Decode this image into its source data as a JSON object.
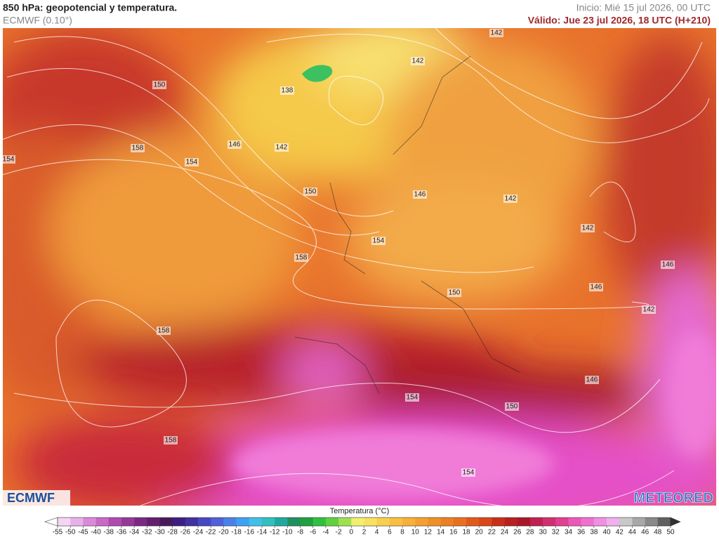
{
  "header": {
    "title": "850 hPa: geopotencial y temperatura.",
    "subtitle": "ECMWF (0.10°)",
    "init": "Inicio: Mié 15 jul 2026, 00 UTC",
    "valid": "Válido: Jue 23 jul 2026, 18 UTC (H+210)"
  },
  "map": {
    "contour_labels": [
      "150",
      "138",
      "142",
      "142",
      "158",
      "146",
      "142",
      "154",
      "154",
      "150",
      "146",
      "142",
      "142",
      "154",
      "158",
      "146",
      "146",
      "150",
      "142",
      "158",
      "146",
      "154",
      "150",
      "158",
      "154"
    ]
  },
  "logos": {
    "left": "ECMWF",
    "right": "METEORED"
  },
  "colorbar": {
    "title": "Temperatura (°C)",
    "ticks": [
      -55,
      -50,
      -45,
      -40,
      -38,
      -36,
      -34,
      -32,
      -30,
      -28,
      -26,
      -24,
      -22,
      -20,
      -18,
      -16,
      -14,
      -12,
      -10,
      -8,
      -6,
      -4,
      -2,
      0,
      2,
      4,
      6,
      8,
      10,
      12,
      14,
      16,
      18,
      20,
      22,
      24,
      26,
      28,
      30,
      32,
      34,
      36,
      38,
      40,
      42,
      44,
      46,
      48,
      50
    ]
  }
}
